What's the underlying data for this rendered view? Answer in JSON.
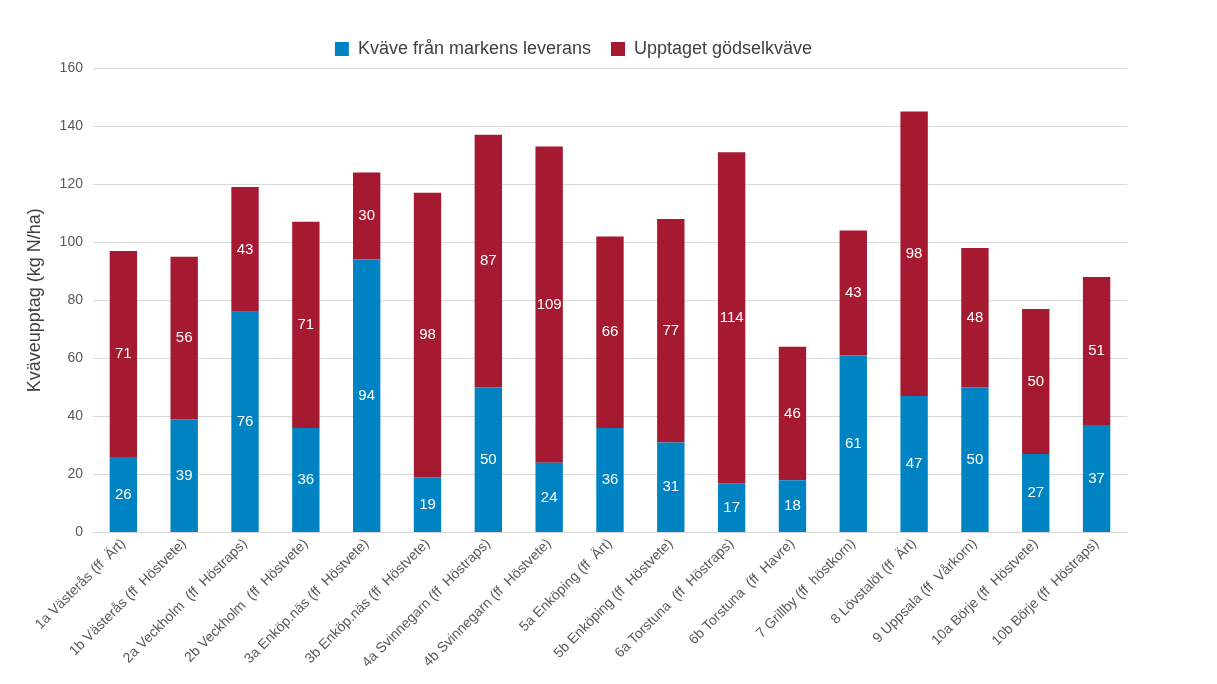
{
  "chart_data": {
    "type": "bar",
    "stacked": true,
    "ylabel": "Kväveupptag (kg N/ha)",
    "categories": [
      "1a Västerås (ff  Ärt)",
      "1b Västerås (ff  Höstvete)",
      "2a Veckholm  (ff  Höstraps)",
      "2b Veckholm  (ff  Höstvete)",
      "3a Enköp.näs (ff  Höstvete)",
      "3b Enköp.näs (ff  Höstvete)",
      "4a Svinnegarn (ff  Höstraps)",
      "4b Svinnegarn (ff  Höstvete)",
      "5a Enköping (ff  Ärt)",
      "5b Enköping (ff  Höstvete)",
      "6a Torstuna  (ff  Höstraps)",
      "6b Torstuna  (ff  Havre)",
      "7 Grillby (ff  höstkorn)",
      "8 Lövstalöt (ff  Ärt)",
      "9 Uppsala (ff  Vårkorn)",
      "10a Börje (ff  Höstvete)",
      "10b Börje (ff  Höstraps)"
    ],
    "series": [
      {
        "name": "Kväve från markens leverans",
        "color": "#0083c3",
        "values": [
          26,
          39,
          76,
          36,
          94,
          19,
          50,
          24,
          36,
          31,
          17,
          18,
          61,
          47,
          50,
          27,
          37
        ]
      },
      {
        "name": "Upptaget gödselkväve",
        "color": "#a51931",
        "values": [
          71,
          56,
          43,
          71,
          30,
          98,
          87,
          109,
          66,
          77,
          114,
          46,
          43,
          98,
          48,
          50,
          51
        ]
      }
    ],
    "ylim": [
      0,
      160
    ],
    "yticks": [
      0,
      20,
      40,
      60,
      80,
      100,
      120,
      140,
      160
    ],
    "grid": "y",
    "legend": "top",
    "data_labels": true
  }
}
